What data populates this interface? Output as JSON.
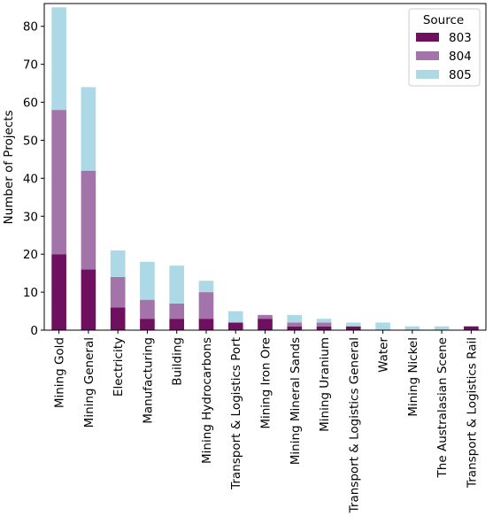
{
  "chart_data": {
    "type": "bar",
    "stacked": true,
    "title": "",
    "xlabel": "",
    "ylabel": "Number of Projects",
    "ylim": [
      0,
      86
    ],
    "yticks": [
      0,
      10,
      20,
      30,
      40,
      50,
      60,
      70,
      80
    ],
    "grid": false,
    "categories": [
      "Mining Gold",
      "Mining General",
      "Electricity",
      "Manufacturing",
      "Building",
      "Mining Hydrocarbons",
      "Transport & Logistics Port",
      "Mining Iron Ore",
      "Mining Mineral Sands",
      "Mining Uranium",
      "Transport & Logistics General",
      "Water",
      "Mining Nickel",
      "The Australasian Scene",
      "Transport & Logistics Rail"
    ],
    "series": [
      {
        "name": "803",
        "color": "#6e0f5f",
        "values": [
          20,
          16,
          6,
          3,
          3,
          3,
          2,
          3,
          1,
          1,
          1,
          0,
          0,
          0,
          1
        ]
      },
      {
        "name": "804",
        "color": "#a274a9",
        "values": [
          38,
          26,
          8,
          5,
          4,
          7,
          0,
          1,
          1,
          1,
          0,
          0,
          0,
          0,
          0
        ]
      },
      {
        "name": "805",
        "color": "#add8e6",
        "values": [
          27,
          22,
          7,
          10,
          10,
          3,
          3,
          0,
          2,
          1,
          1,
          2,
          1,
          1,
          0
        ]
      }
    ],
    "legend": {
      "title": "Source",
      "position": "top-right"
    }
  }
}
